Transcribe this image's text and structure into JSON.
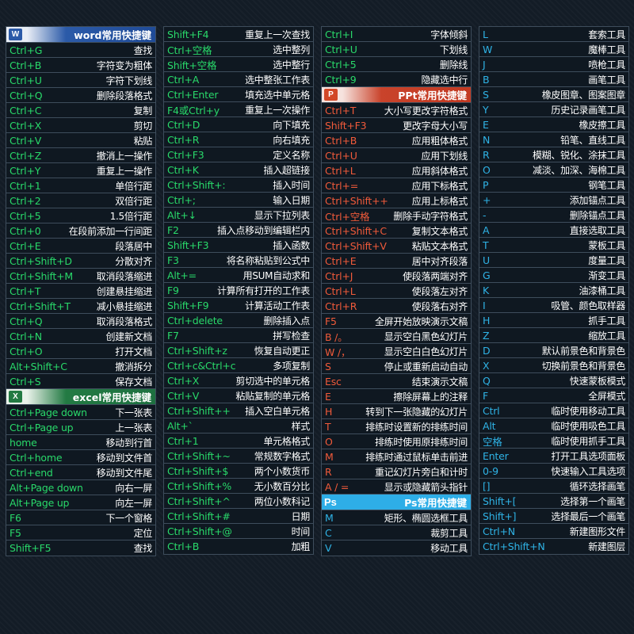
{
  "colors": {
    "green": "#29d96a",
    "red": "#f05a3a",
    "blue": "#2fb3e6",
    "word": "#2b5aa8",
    "excel": "#237a43",
    "ppt": "#c9432b",
    "ps": "#2eaee7"
  },
  "col1": [
    {
      "header": "word常用快捷键",
      "icon": "W",
      "theme": "word"
    },
    [
      "Ctrl+G",
      "查找"
    ],
    [
      "Ctrl+B",
      "字符变为粗体"
    ],
    [
      "Ctrl+U",
      "字符下划线"
    ],
    [
      "Ctrl+Q",
      "删除段落格式"
    ],
    [
      "Ctrl+C",
      "复制"
    ],
    [
      "Ctrl+X",
      "剪切"
    ],
    [
      "Ctrl+V",
      "粘贴"
    ],
    [
      "Ctrl+Z",
      "撤消上一操作"
    ],
    [
      "Ctrl+Y",
      "重复上一操作"
    ],
    [
      "Ctrl+1",
      "单倍行距"
    ],
    [
      "Ctrl+2",
      "双倍行距"
    ],
    [
      "Ctrl+5",
      "1.5倍行距"
    ],
    [
      "Ctrl+0",
      "在段前添加一行间距"
    ],
    [
      "Ctrl+E",
      "段落居中"
    ],
    [
      "Ctrl+Shift+D",
      "分散对齐"
    ],
    [
      "Ctrl+Shift+M",
      "取消段落缩进"
    ],
    [
      "Ctrl+T",
      "创建悬挂缩进"
    ],
    [
      "Ctrl+Shift+T",
      "减小悬挂缩进"
    ],
    [
      "Ctrl+Q",
      "取消段落格式"
    ],
    [
      "Ctrl+N",
      "创建新文档"
    ],
    [
      "Ctrl+O",
      "打开文档"
    ],
    [
      "Alt+Shift+C",
      "撤消拆分"
    ],
    [
      "Ctrl+S",
      "保存文档"
    ],
    {
      "header": "excel常用快捷键",
      "icon": "X",
      "theme": "excel"
    },
    [
      "Ctrl+Page down",
      "下一张表"
    ],
    [
      "Ctrl+Page up",
      "上一张表"
    ],
    [
      "home",
      "移动到行首"
    ],
    [
      "Ctrl+home",
      "移动到文件首"
    ],
    [
      "Ctrl+end",
      "移动到文件尾"
    ],
    [
      "Alt+Page down",
      "向右一屏"
    ],
    [
      "Alt+Page up",
      "向左一屏"
    ],
    [
      "F6",
      "下一个窗格"
    ],
    [
      "F5",
      "定位"
    ],
    [
      "Shift+F5",
      "查找"
    ]
  ],
  "col2": [
    [
      "Shift+F4",
      "重复上一次查找"
    ],
    [
      "Ctrl+空格",
      "选中整列"
    ],
    [
      "Shift+空格",
      "选中整行"
    ],
    [
      "Ctrl+A",
      "选中整张工作表"
    ],
    [
      "Ctrl+Enter",
      "填充选中单元格"
    ],
    [
      "F4或Ctrl+y",
      "重复上一次操作"
    ],
    [
      "Ctrl+D",
      "向下填充"
    ],
    [
      "Ctrl+R",
      "向右填充"
    ],
    [
      "Ctrl+F3",
      "定义名称"
    ],
    [
      "Ctrl+K",
      "插入超链接"
    ],
    [
      "Ctrl+Shift+:",
      "插入时间"
    ],
    [
      "Ctrl+;",
      "输入日期"
    ],
    [
      "Alt+↓",
      "显示下拉列表"
    ],
    [
      "F2",
      "插入点移动到编辑栏内"
    ],
    [
      "Shift+F3",
      "插入函数"
    ],
    [
      "F3",
      "将名称粘贴到公式中"
    ],
    [
      "Alt+=",
      "用SUM自动求和"
    ],
    [
      "F9",
      "计算所有打开的工作表"
    ],
    [
      "Shift+F9",
      "计算活动工作表"
    ],
    [
      "Ctrl+delete",
      "删除插入点"
    ],
    [
      "F7",
      "拼写检查"
    ],
    [
      "Ctrl+Shift+z",
      "恢复自动更正"
    ],
    [
      "Ctrl+c&Ctrl+c",
      "多项复制"
    ],
    [
      "Ctrl+X",
      "剪切选中的单元格"
    ],
    [
      "Ctrl+V",
      "粘贴复制的单元格"
    ],
    [
      "Ctrl+Shift++",
      "插入空白单元格"
    ],
    [
      "Alt+`",
      "样式"
    ],
    [
      "Ctrl+1",
      "单元格格式"
    ],
    [
      "Ctrl+Shift+~",
      "常规数字格式"
    ],
    [
      "Ctrl+Shift+$",
      "两个小数货币"
    ],
    [
      "Ctrl+Shift+%",
      "无小数百分比"
    ],
    [
      "Ctrl+Shift+^",
      "两位小数科记"
    ],
    [
      "Ctrl+Shift+#",
      "日期"
    ],
    [
      "Ctrl+Shift+@",
      "时间"
    ],
    [
      "Ctrl+B",
      "加粗"
    ]
  ],
  "col3": [
    [
      "Ctrl+I",
      "字体倾斜"
    ],
    [
      "Ctrl+U",
      "下划线"
    ],
    [
      "Ctrl+5",
      "删除线"
    ],
    [
      "Ctrl+9",
      "隐藏选中行"
    ],
    {
      "header": "PPt常用快捷键",
      "icon": "P",
      "theme": "ppt"
    },
    [
      "Ctrl+T",
      "大小写更改字符格式"
    ],
    [
      "Shift+F3",
      "更改字母大小写"
    ],
    [
      "Ctrl+B",
      "应用粗体格式"
    ],
    [
      "Ctrl+U",
      "应用下划线"
    ],
    [
      "Ctrl+L",
      "应用斜体格式"
    ],
    [
      "Ctrl+=",
      "应用下标格式"
    ],
    [
      "Ctrl+Shift++",
      "应用上标格式"
    ],
    [
      "Ctrl+空格",
      "删除手动字符格式"
    ],
    [
      "Ctrl+Shift+C",
      "复制文本格式"
    ],
    [
      "Ctrl+Shift+V",
      "粘贴文本格式"
    ],
    [
      "Ctrl+E",
      "居中对齐段落"
    ],
    [
      "Ctrl+J",
      "使段落两端对齐"
    ],
    [
      "Ctrl+L",
      "使段落左对齐"
    ],
    [
      "Ctrl+R",
      "使段落右对齐"
    ],
    [
      "F5",
      "全屏开始放映演示文稿"
    ],
    [
      "B /。",
      "显示空白黑色幻灯片"
    ],
    [
      "W /，",
      "显示空白白色幻灯片"
    ],
    [
      "S",
      "停止或重新启动自动"
    ],
    [
      "Esc",
      "结束演示文稿"
    ],
    [
      "E",
      "擦除屏幕上的注释"
    ],
    [
      "H",
      "转到下一张隐藏的幻灯片"
    ],
    [
      "T",
      "排练时设置新的排练时间"
    ],
    [
      "O",
      "排练时使用原排练时间"
    ],
    [
      "M",
      "排练时通过鼠标单击前进"
    ],
    [
      "R",
      "重记幻灯片旁白和计时"
    ],
    [
      "A / =",
      "显示或隐藏箭头指针"
    ],
    {
      "header": "Ps常用快捷键",
      "icon": "Ps",
      "theme": "ps"
    },
    [
      "M",
      "矩形、椭圆选框工具"
    ],
    [
      "C",
      "裁剪工具"
    ],
    [
      "V",
      "移动工具"
    ]
  ],
  "col4": [
    [
      "L",
      "套索工具"
    ],
    [
      "W",
      "魔棒工具"
    ],
    [
      "J",
      "喷枪工具"
    ],
    [
      "B",
      "画笔工具"
    ],
    [
      "S",
      "橡皮图章、图案图章"
    ],
    [
      "Y",
      "历史记录画笔工具"
    ],
    [
      "E",
      "橡皮擦工具"
    ],
    [
      "N",
      "铅笔、直线工具"
    ],
    [
      "R",
      "模糊、锐化、涂抹工具"
    ],
    [
      "O",
      "减淡、加深、海棉工具"
    ],
    [
      "P",
      "钢笔工具"
    ],
    [
      "+",
      "添加锚点工具"
    ],
    [
      "-",
      "删除锚点工具"
    ],
    [
      "A",
      "直接选取工具"
    ],
    [
      "T",
      "蒙板工具"
    ],
    [
      "U",
      "度量工具"
    ],
    [
      "G",
      "渐变工具"
    ],
    [
      "K",
      "油漆桶工具"
    ],
    [
      "I",
      "吸管、颜色取样器"
    ],
    [
      "H",
      "抓手工具"
    ],
    [
      "Z",
      "缩放工具"
    ],
    [
      "D",
      "默认前景色和背景色"
    ],
    [
      "X",
      "切换前景色和背景色"
    ],
    [
      "Q",
      "快速蒙板模式"
    ],
    [
      "F",
      "全屏模式"
    ],
    [
      "Ctrl",
      "临时使用移动工具"
    ],
    [
      "Alt",
      "临时使用吸色工具"
    ],
    [
      "空格",
      "临时使用抓手工具"
    ],
    [
      "Enter",
      "打开工具选项面板"
    ],
    [
      "0-9",
      "快速输入工具选项"
    ],
    [
      "[]",
      "循环选择画笔"
    ],
    [
      "Shift+[",
      "选择第一个画笔"
    ],
    [
      "Shift+]",
      "选择最后一个画笔"
    ],
    [
      "Ctrl+N",
      "新建图形文件"
    ],
    [
      "Ctrl+Shift+N",
      "新建图层"
    ]
  ]
}
